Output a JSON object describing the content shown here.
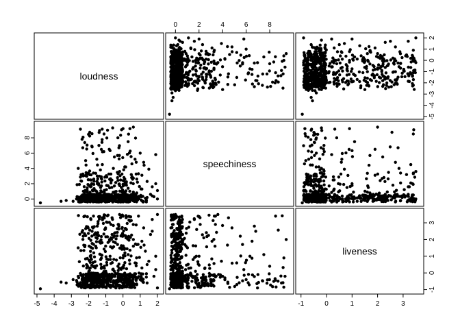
{
  "chart_data": {
    "type": "scatter",
    "subtype": "pairs-matrix",
    "variables": [
      "loudness",
      "speechiness",
      "liveness"
    ],
    "ranges": {
      "loudness": [
        -5,
        2.2
      ],
      "speechiness": [
        -0.6,
        9.8
      ],
      "liveness": [
        -1.1,
        3.7
      ]
    },
    "ticks": {
      "loudness": [
        "-5",
        "-4",
        "-3",
        "-2",
        "-1",
        "0",
        "1",
        "2"
      ],
      "speechiness": [
        "0",
        "2",
        "4",
        "6",
        "8"
      ],
      "liveness": [
        "-1",
        "0",
        "1",
        "2",
        "3"
      ],
      "loudness_right": [
        "-5",
        "-4",
        "-3",
        "-2",
        "-1",
        "0",
        "1",
        "2"
      ]
    },
    "grid": false,
    "legend": "none",
    "point_color": "#000000",
    "points": [
      {
        "loudness": -4.8,
        "speechiness": -0.5,
        "liveness": -0.95
      },
      {
        "loudness": -3.6,
        "speechiness": -0.3,
        "liveness": -0.55
      },
      {
        "loudness": -3.3,
        "speechiness": -0.2,
        "liveness": -0.6
      },
      {
        "loudness": -2.9,
        "speechiness": -0.3,
        "liveness": -0.4
      },
      {
        "loudness": -2.7,
        "speechiness": 0.0,
        "liveness": -0.45
      },
      {
        "loudness": -2.5,
        "speechiness": -0.4,
        "liveness": -0.7
      },
      {
        "loudness": -2.6,
        "speechiness": 4.0,
        "liveness": -0.2
      },
      {
        "loudness": -2.2,
        "speechiness": 1.1,
        "liveness": -0.3
      },
      {
        "loudness": -2.0,
        "speechiness": 0.5,
        "liveness": 0.0
      },
      {
        "loudness": -1.9,
        "speechiness": 2.5,
        "liveness": 0.3
      },
      {
        "loudness": -1.7,
        "speechiness": -0.3,
        "liveness": 1.2
      },
      {
        "loudness": -1.6,
        "speechiness": 0.3,
        "liveness": 2.4
      },
      {
        "loudness": -1.5,
        "speechiness": 3.0,
        "liveness": -0.5
      },
      {
        "loudness": -1.4,
        "speechiness": 7.0,
        "liveness": -0.1
      },
      {
        "loudness": -1.3,
        "speechiness": 1.5,
        "liveness": 0.8
      },
      {
        "loudness": -1.2,
        "speechiness": 4.5,
        "liveness": 3.3
      },
      {
        "loudness": -1.1,
        "speechiness": 8.5,
        "liveness": 3.4
      },
      {
        "loudness": -1.0,
        "speechiness": 0.6,
        "liveness": 0.1
      },
      {
        "loudness": -0.9,
        "speechiness": 9.0,
        "liveness": -0.6
      },
      {
        "loudness": -0.8,
        "speechiness": 6.5,
        "liveness": 1.9
      },
      {
        "loudness": -0.7,
        "speechiness": 2.1,
        "liveness": 2.9
      },
      {
        "loudness": -0.6,
        "speechiness": 9.3,
        "liveness": -0.2
      },
      {
        "loudness": -0.5,
        "speechiness": 5.5,
        "liveness": 2.2
      },
      {
        "loudness": -0.4,
        "speechiness": 1.0,
        "liveness": -0.8
      },
      {
        "loudness": -0.3,
        "speechiness": 8.0,
        "liveness": 0.4
      },
      {
        "loudness": -0.2,
        "speechiness": 3.6,
        "liveness": 3.5
      },
      {
        "loudness": -0.1,
        "speechiness": 0.2,
        "liveness": 1.5
      },
      {
        "loudness": 0.0,
        "speechiness": 9.2,
        "liveness": 0.9
      },
      {
        "loudness": 0.1,
        "speechiness": 4.2,
        "liveness": -0.3
      },
      {
        "loudness": 0.2,
        "speechiness": 1.8,
        "liveness": 2.6
      },
      {
        "loudness": 0.3,
        "speechiness": 7.5,
        "liveness": 1.1
      },
      {
        "loudness": 0.4,
        "speechiness": 0.4,
        "liveness": 3.1
      },
      {
        "loudness": 0.5,
        "speechiness": 2.8,
        "liveness": -0.7
      },
      {
        "loudness": 0.6,
        "speechiness": 9.4,
        "liveness": 2.0
      },
      {
        "loudness": 0.7,
        "speechiness": 5.2,
        "liveness": 0.6
      },
      {
        "loudness": 0.8,
        "speechiness": 0.8,
        "liveness": 1.7
      },
      {
        "loudness": 0.9,
        "speechiness": 3.3,
        "liveness": 3.4
      },
      {
        "loudness": 1.0,
        "speechiness": 6.0,
        "liveness": -0.4
      },
      {
        "loudness": 1.1,
        "speechiness": 1.3,
        "liveness": 0.3
      },
      {
        "loudness": 1.2,
        "speechiness": 4.8,
        "liveness": 2.7
      },
      {
        "loudness": 1.3,
        "speechiness": 0.1,
        "liveness": 1.3
      },
      {
        "loudness": 1.4,
        "speechiness": 2.3,
        "liveness": -0.6
      },
      {
        "loudness": 1.5,
        "speechiness": 3.9,
        "liveness": 0.7
      },
      {
        "loudness": 1.6,
        "speechiness": 0.6,
        "liveness": 2.3
      },
      {
        "loudness": 1.7,
        "speechiness": 1.6,
        "liveness": 3.2
      },
      {
        "loudness": 1.8,
        "speechiness": 0.3,
        "liveness": -0.2
      },
      {
        "loudness": 1.9,
        "speechiness": 2.0,
        "liveness": 1.0
      },
      {
        "loudness": 2.0,
        "speechiness": 0.0,
        "liveness": 3.5
      },
      {
        "loudness": 2.0,
        "speechiness": 1.1,
        "liveness": -0.9
      },
      {
        "loudness": 1.9,
        "speechiness": 5.8,
        "liveness": 0.2
      },
      {
        "loudness": 0.8,
        "speechiness": 2.6,
        "liveness": -0.7
      },
      {
        "loudness": 0.3,
        "speechiness": 1.4,
        "liveness": -0.5
      },
      {
        "loudness": -0.9,
        "speechiness": 0.5,
        "liveness": -0.6
      },
      {
        "loudness": 1.4,
        "speechiness": 0.2,
        "liveness": 0.5
      },
      {
        "loudness": -1.8,
        "speechiness": 0.1,
        "liveness": -0.6
      },
      {
        "loudness": 0.6,
        "speechiness": 0.9,
        "liveness": 1.6
      },
      {
        "loudness": 1.7,
        "speechiness": 0.4,
        "liveness": 2.5
      },
      {
        "loudness": -0.5,
        "speechiness": 1.7,
        "liveness": 0.1
      },
      {
        "loudness": 1.1,
        "speechiness": 3.1,
        "liveness": 1.9
      },
      {
        "loudness": 0.0,
        "speechiness": 0.7,
        "liveness": -0.4
      }
    ],
    "density_note_points_generated_in_script": true
  },
  "labels": {
    "loudness": "loudness",
    "speechiness": "speechiness",
    "liveness": "liveness"
  }
}
